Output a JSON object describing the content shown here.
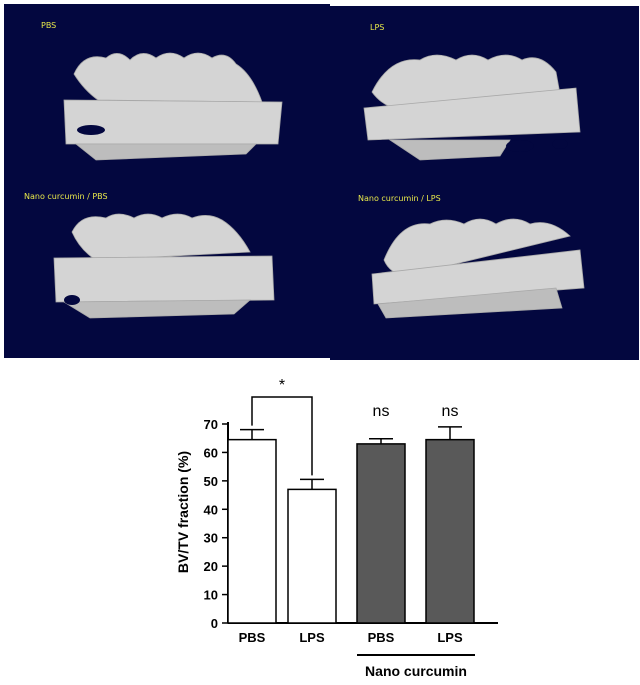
{
  "micro_ct_panels": [
    {
      "label": "PBS",
      "bone_condition": "intact"
    },
    {
      "label": "LPS",
      "bone_condition": "resorbed"
    },
    {
      "label": "Nano curcumin / PBS",
      "bone_condition": "intact"
    },
    {
      "label": "Nano curcumin / LPS",
      "bone_condition": "mildly-resorbed"
    }
  ],
  "colors": {
    "panel_background": "#03073f",
    "scan_label": "#e8e84a",
    "bone": "#d4d4d4",
    "bar_control": "#ffffff",
    "bar_nano_curcumin": "#595959"
  },
  "chart_data": {
    "type": "bar",
    "categories": [
      "PBS",
      "LPS",
      "PBS",
      "LPS"
    ],
    "values": [
      64.5,
      47,
      63,
      64.5
    ],
    "errors": [
      3.5,
      3.5,
      1.8,
      4.5
    ],
    "bar_fills": [
      "#ffffff",
      "#ffffff",
      "#595959",
      "#595959"
    ],
    "ylabel": "BV/TV fraction (%)",
    "ylim": [
      0,
      70
    ],
    "yticks": [
      "0",
      "10",
      "20",
      "30",
      "40",
      "50",
      "60",
      "70"
    ],
    "group_label": "Nano curcumin",
    "annotations": [
      {
        "type": "bracket",
        "from": 0,
        "to": 1,
        "text": "*"
      },
      {
        "type": "label",
        "bar": 2,
        "text": "ns"
      },
      {
        "type": "label",
        "bar": 3,
        "text": "ns"
      }
    ]
  }
}
